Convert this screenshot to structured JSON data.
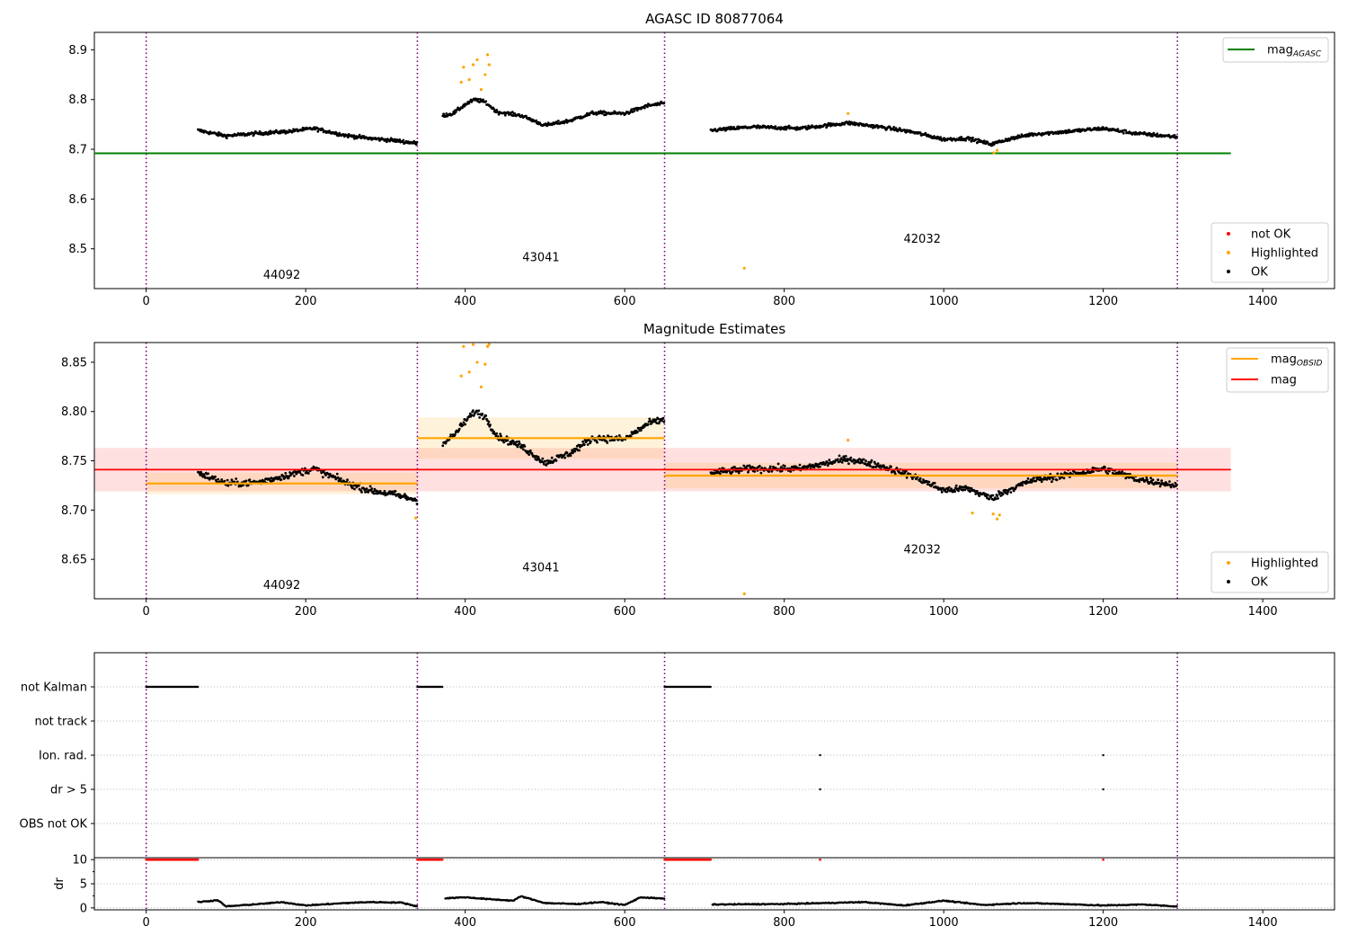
{
  "chart_data": [
    {
      "type": "scatter",
      "title": "AGASC ID 80877064",
      "xlim": [
        -65,
        1490
      ],
      "ylim": [
        8.42,
        8.935
      ],
      "xticks": [
        0,
        200,
        400,
        600,
        800,
        1000,
        1200,
        1400
      ],
      "yticks": [
        8.5,
        8.6,
        8.7,
        8.8,
        8.9
      ],
      "obs_boundaries": [
        0,
        340,
        650,
        1293
      ],
      "obs_labels": [
        {
          "text": "44092",
          "x": 170,
          "y": 8.44
        },
        {
          "text": "43041",
          "x": 495,
          "y": 8.475
        },
        {
          "text": "42032",
          "x": 973,
          "y": 8.512
        }
      ],
      "reference_line": {
        "name": "mag_AGASC",
        "y": 8.692,
        "x": [
          -65,
          1360
        ],
        "color": "#008000"
      },
      "segments": [
        {
          "x0": 65,
          "x1": 340,
          "points": [
            [
              65,
              8.738
            ],
            [
              100,
              8.727
            ],
            [
              140,
              8.732
            ],
            [
              180,
              8.736
            ],
            [
              210,
              8.742
            ],
            [
              250,
              8.728
            ],
            [
              280,
              8.722
            ],
            [
              310,
              8.718
            ],
            [
              340,
              8.712
            ]
          ]
        },
        {
          "x0": 372,
          "x1": 650,
          "points": [
            [
              372,
              8.768
            ],
            [
              385,
              8.772
            ],
            [
              400,
              8.79
            ],
            [
              412,
              8.8
            ],
            [
              425,
              8.795
            ],
            [
              440,
              8.775
            ],
            [
              470,
              8.768
            ],
            [
              500,
              8.748
            ],
            [
              530,
              8.757
            ],
            [
              560,
              8.773
            ],
            [
              600,
              8.772
            ],
            [
              630,
              8.788
            ],
            [
              650,
              8.792
            ]
          ]
        },
        {
          "x0": 708,
          "x1": 1293,
          "points": [
            [
              708,
              8.738
            ],
            [
              760,
              8.745
            ],
            [
              820,
              8.742
            ],
            [
              880,
              8.753
            ],
            [
              920,
              8.745
            ],
            [
              960,
              8.735
            ],
            [
              1000,
              8.72
            ],
            [
              1030,
              8.722
            ],
            [
              1060,
              8.71
            ],
            [
              1080,
              8.72
            ],
            [
              1110,
              8.73
            ],
            [
              1150,
              8.735
            ],
            [
              1200,
              8.742
            ],
            [
              1240,
              8.732
            ],
            [
              1293,
              8.725
            ]
          ]
        }
      ],
      "highlighted_points": [
        [
          395,
          8.835
        ],
        [
          398,
          8.865
        ],
        [
          405,
          8.84
        ],
        [
          410,
          8.87
        ],
        [
          415,
          8.88
        ],
        [
          420,
          8.82
        ],
        [
          425,
          8.85
        ],
        [
          428,
          8.89
        ],
        [
          430,
          8.87
        ],
        [
          880,
          8.772
        ],
        [
          1063,
          8.693
        ],
        [
          1067,
          8.698
        ],
        [
          750,
          8.461
        ]
      ],
      "legend_upper": [
        {
          "label": "mag",
          "sub": "AGASC",
          "color": "#008000"
        }
      ],
      "legend_lower": [
        {
          "label": "not OK",
          "color": "#ff0000"
        },
        {
          "label": "Highlighted",
          "color": "#ffa500"
        },
        {
          "label": "OK",
          "color": "#000000"
        }
      ]
    },
    {
      "type": "scatter",
      "title": "Magnitude Estimates",
      "xlim": [
        -65,
        1490
      ],
      "ylim": [
        8.61,
        8.87
      ],
      "xticks": [
        0,
        200,
        400,
        600,
        800,
        1000,
        1200,
        1400
      ],
      "yticks": [
        8.65,
        8.7,
        8.75,
        8.8,
        8.85
      ],
      "obs_boundaries": [
        0,
        340,
        650,
        1293
      ],
      "obs_labels": [
        {
          "text": "44092",
          "x": 170,
          "y": 8.62
        },
        {
          "text": "43041",
          "x": 495,
          "y": 8.638
        },
        {
          "text": "42032",
          "x": 973,
          "y": 8.656
        }
      ],
      "mag": {
        "y": 8.741,
        "band": [
          8.719,
          8.763
        ],
        "x": [
          -65,
          1360
        ],
        "color": "#ff0000"
      },
      "mag_obsid": [
        {
          "x0": 0,
          "x1": 340,
          "y": 8.727,
          "band": [
            8.716,
            8.738
          ]
        },
        {
          "x0": 340,
          "x1": 650,
          "y": 8.773,
          "band": [
            8.752,
            8.794
          ]
        },
        {
          "x0": 650,
          "x1": 1293,
          "y": 8.735,
          "band": [
            8.722,
            8.748
          ]
        }
      ],
      "segments": [
        {
          "x0": 65,
          "x1": 340,
          "points": [
            [
              65,
              8.738
            ],
            [
              100,
              8.727
            ],
            [
              140,
              8.728
            ],
            [
              180,
              8.736
            ],
            [
              210,
              8.742
            ],
            [
              250,
              8.728
            ],
            [
              280,
              8.72
            ],
            [
              310,
              8.716
            ],
            [
              340,
              8.71
            ]
          ]
        },
        {
          "x0": 372,
          "x1": 650,
          "points": [
            [
              372,
              8.768
            ],
            [
              385,
              8.775
            ],
            [
              400,
              8.79
            ],
            [
              412,
              8.8
            ],
            [
              425,
              8.795
            ],
            [
              440,
              8.775
            ],
            [
              470,
              8.765
            ],
            [
              500,
              8.748
            ],
            [
              530,
              8.757
            ],
            [
              560,
              8.773
            ],
            [
              600,
              8.772
            ],
            [
              630,
              8.788
            ],
            [
              650,
              8.792
            ]
          ]
        },
        {
          "x0": 708,
          "x1": 1293,
          "points": [
            [
              708,
              8.738
            ],
            [
              760,
              8.742
            ],
            [
              820,
              8.742
            ],
            [
              880,
              8.752
            ],
            [
              920,
              8.745
            ],
            [
              960,
              8.735
            ],
            [
              1000,
              8.72
            ],
            [
              1030,
              8.722
            ],
            [
              1060,
              8.712
            ],
            [
              1080,
              8.72
            ],
            [
              1110,
              8.73
            ],
            [
              1150,
              8.735
            ],
            [
              1200,
              8.742
            ],
            [
              1240,
              8.732
            ],
            [
              1293,
              8.725
            ]
          ]
        }
      ],
      "highlighted_points": [
        [
          395,
          8.836
        ],
        [
          398,
          8.866
        ],
        [
          405,
          8.84
        ],
        [
          410,
          8.868
        ],
        [
          415,
          8.85
        ],
        [
          420,
          8.825
        ],
        [
          425,
          8.848
        ],
        [
          428,
          8.866
        ],
        [
          430,
          8.87
        ],
        [
          338,
          8.692
        ],
        [
          880,
          8.771
        ],
        [
          1036,
          8.697
        ],
        [
          1062,
          8.696
        ],
        [
          1067,
          8.691
        ],
        [
          1070,
          8.695
        ],
        [
          750,
          8.615
        ]
      ],
      "legend_upper": [
        {
          "label": "mag",
          "sub": "OBSID",
          "color": "#ffa500"
        },
        {
          "label": "mag",
          "sub": "",
          "color": "#ff0000"
        }
      ],
      "legend_lower": [
        {
          "label": "Highlighted",
          "color": "#ffa500"
        },
        {
          "label": "OK",
          "color": "#000000"
        }
      ]
    },
    {
      "type": "scatter",
      "xlim": [
        -65,
        1490
      ],
      "xticks": [
        0,
        200,
        400,
        600,
        800,
        1000,
        1200,
        1400
      ],
      "obs_boundaries": [
        0,
        340,
        650,
        1293
      ],
      "flags": [
        "not Kalman",
        "not track",
        "Ion. rad.",
        "dr > 5",
        "OBS not OK"
      ],
      "flag_ranges": [
        {
          "flag": "not Kalman",
          "ranges": [
            [
              0,
              65
            ],
            [
              340,
              372
            ],
            [
              650,
              708
            ]
          ]
        }
      ],
      "flag_points": [
        {
          "flag": "Ion. rad.",
          "x": [
            845,
            1200
          ]
        },
        {
          "flag": "dr > 5",
          "x": [
            845,
            1200
          ]
        }
      ],
      "dr_panel": {
        "ylabel": "dr",
        "ylim": [
          -0.4,
          10.4
        ],
        "yticks": [
          0,
          5,
          10
        ],
        "clipped_value": 10,
        "clipped_ranges": [
          [
            0,
            65
          ],
          [
            340,
            372
          ],
          [
            650,
            708
          ]
        ],
        "clipped_points": [
          845,
          1200
        ],
        "segments": [
          {
            "x0": 65,
            "x1": 340,
            "points": [
              [
                65,
                1.2
              ],
              [
                90,
                1.6
              ],
              [
                100,
                0.3
              ],
              [
                150,
                0.9
              ],
              [
                170,
                1.2
              ],
              [
                200,
                0.5
              ],
              [
                250,
                1.0
              ],
              [
                280,
                1.2
              ],
              [
                320,
                1.1
              ],
              [
                340,
                0.3
              ]
            ]
          },
          {
            "x0": 375,
            "x1": 650,
            "points": [
              [
                375,
                2.0
              ],
              [
                400,
                2.2
              ],
              [
                430,
                1.8
              ],
              [
                460,
                1.5
              ],
              [
                470,
                2.4
              ],
              [
                500,
                1.0
              ],
              [
                540,
                0.8
              ],
              [
                570,
                1.2
              ],
              [
                600,
                0.6
              ],
              [
                620,
                2.2
              ],
              [
                650,
                1.9
              ]
            ]
          },
          {
            "x0": 710,
            "x1": 1293,
            "points": [
              [
                710,
                0.7
              ],
              [
                800,
                0.8
              ],
              [
                850,
                1.0
              ],
              [
                900,
                1.2
              ],
              [
                950,
                0.5
              ],
              [
                1000,
                1.5
              ],
              [
                1050,
                0.6
              ],
              [
                1100,
                1.0
              ],
              [
                1150,
                0.8
              ],
              [
                1200,
                0.5
              ],
              [
                1250,
                0.7
              ],
              [
                1293,
                0.3
              ]
            ]
          }
        ]
      }
    }
  ],
  "colors": {
    "ok": "#000000",
    "highlighted": "#ffa500",
    "not_ok": "#ff0000",
    "boundary": "#800080",
    "mag_agasc": "#008000",
    "mag": "#ff0000",
    "mag_obsid": "#ffa500"
  }
}
